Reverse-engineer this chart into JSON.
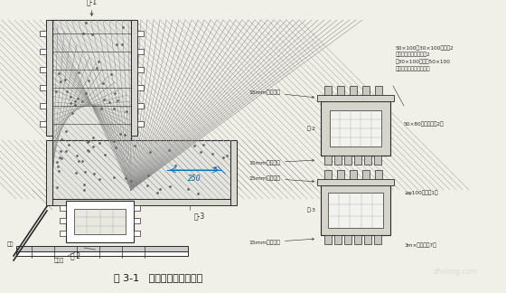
{
  "bg_color": "#f0efe8",
  "title": "图 3-1   外框架梁模板配置图",
  "title_fontsize": 8,
  "lc": "#2a2a2a",
  "annotations": {
    "mu1": "模-1",
    "mu2": "模-2",
    "mu3": "模-3",
    "ganguan": "钢管",
    "dikoujia": "碗扣架",
    "zong2": "纵-2",
    "zong3": "纵-3",
    "mm15_1": "15mm厚多层板",
    "mm15_2": "15mm厚多层板",
    "mm15_3": "15mm厚多层板",
    "mm15_4": "15mm厚多层板",
    "note1": "50×100、30×100木方各2\n根，盖胶，钉牢，其中2\n根30×100木方衬50×100\n木方刨成（须室面刨光）",
    "note2": "50×80木龙骨，见2楼",
    "note3": "≥φ100方口管1批",
    "note4": "3m×文木龙骨7根",
    "dim250": "250"
  },
  "watermark": "zhulong.com"
}
